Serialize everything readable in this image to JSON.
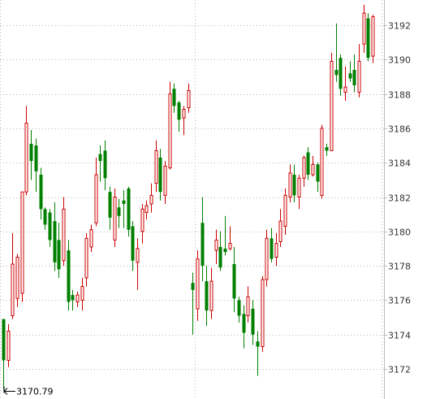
{
  "chart_data": {
    "type": "candlestick",
    "y_axis": {
      "position": "right",
      "min": 3170.5,
      "max": 3193.5,
      "ticks": [
        3172,
        3174,
        3176,
        3178,
        3180,
        3182,
        3184,
        3186,
        3188,
        3190,
        3192
      ]
    },
    "grid": {
      "horizontal": true,
      "vertical": true,
      "style": "dotted"
    },
    "up_color": "#cc0000",
    "down_color": "#008000",
    "low_marker": {
      "label": "3170.79",
      "value": 3170.79
    },
    "candles": [
      [
        3174.9,
        3172.5,
        3174.9,
        3170.8
      ],
      [
        3172.5,
        3174.2,
        3174.6,
        3172.1
      ],
      [
        3175.1,
        3178.1,
        3179.9,
        3174.9
      ],
      [
        3176.1,
        3178.5,
        3178.7,
        3175.6
      ],
      [
        3176.4,
        3182.3,
        3182.3,
        3175.9
      ],
      [
        3182.3,
        3186.3,
        3187.3,
        3182.1
      ],
      [
        3185.1,
        3184.1,
        3185.9,
        3183.0
      ],
      [
        3185.0,
        3183.5,
        3185.4,
        3182.3
      ],
      [
        3183.3,
        3181.3,
        3183.7,
        3180.7
      ],
      [
        3181.3,
        3180.4,
        3181.4,
        3180.1
      ],
      [
        3181.1,
        3179.5,
        3181.3,
        3179.1
      ],
      [
        3180.6,
        3178.2,
        3181.7,
        3177.7
      ],
      [
        3179.5,
        3177.8,
        3180.5,
        3177.3
      ],
      [
        3178.3,
        3181.3,
        3182.0,
        3178.0
      ],
      [
        3178.9,
        3175.9,
        3179.5,
        3175.4
      ],
      [
        3176.3,
        3176.0,
        3176.6,
        3175.4
      ],
      [
        3175.9,
        3176.3,
        3176.5,
        3175.6
      ],
      [
        3176.0,
        3176.8,
        3177.3,
        3175.4
      ],
      [
        3177.3,
        3179.6,
        3179.9,
        3176.8
      ],
      [
        3179.1,
        3180.1,
        3180.4,
        3178.8
      ],
      [
        3180.5,
        3183.3,
        3184.3,
        3180.3
      ],
      [
        3184.5,
        3184.1,
        3185.0,
        3182.9
      ],
      [
        3184.7,
        3183.1,
        3185.3,
        3182.4
      ],
      [
        3182.3,
        3180.8,
        3182.6,
        3180.1
      ],
      [
        3179.5,
        3182.0,
        3182.5,
        3179.1
      ],
      [
        3181.4,
        3180.9,
        3181.9,
        3180.2
      ],
      [
        3181.8,
        3181.6,
        3182.4,
        3180.2
      ],
      [
        3182.5,
        3180.1,
        3182.6,
        3179.7
      ],
      [
        3180.3,
        3178.3,
        3180.6,
        3177.7
      ],
      [
        3178.2,
        3179.0,
        3179.6,
        3176.6
      ],
      [
        3180.0,
        3181.3,
        3181.6,
        3179.3
      ],
      [
        3181.1,
        3181.5,
        3181.8,
        3180.7
      ],
      [
        3181.6,
        3182.1,
        3182.8,
        3181.1
      ],
      [
        3182.8,
        3184.7,
        3185.3,
        3182.3
      ],
      [
        3184.3,
        3182.3,
        3184.8,
        3181.8
      ],
      [
        3182.1,
        3183.8,
        3184.1,
        3181.6
      ],
      [
        3183.7,
        3188.0,
        3188.7,
        3183.6
      ],
      [
        3188.3,
        3187.3,
        3188.6,
        3186.9
      ],
      [
        3187.5,
        3186.5,
        3187.6,
        3185.8
      ],
      [
        3186.6,
        3187.1,
        3187.3,
        3185.6
      ],
      [
        3187.2,
        3188.2,
        3188.6,
        3186.9
      ],
      [
        3177.0,
        3176.6,
        3177.6,
        3174.0
      ],
      [
        3175.5,
        3178.4,
        3178.9,
        3174.8
      ],
      [
        3180.5,
        3178.0,
        3182.0,
        3177.1
      ],
      [
        3177.1,
        3175.4,
        3178.0,
        3174.5
      ],
      [
        3175.4,
        3177.1,
        3177.9,
        3174.9
      ],
      [
        3178.9,
        3179.5,
        3180.1,
        3178.1
      ],
      [
        3179.1,
        3177.9,
        3180.0,
        3177.7
      ],
      [
        3179.0,
        3178.8,
        3180.9,
        3178.6
      ],
      [
        3179.0,
        3179.3,
        3180.3,
        3178.9
      ],
      [
        3178.1,
        3176.1,
        3179.1,
        3175.3
      ],
      [
        3176.0,
        3175.1,
        3176.2,
        3174.7
      ],
      [
        3175.2,
        3174.1,
        3175.7,
        3173.2
      ],
      [
        3175.1,
        3176.2,
        3176.8,
        3174.7
      ],
      [
        3175.5,
        3174.0,
        3176.0,
        3173.4
      ],
      [
        3173.6,
        3173.3,
        3174.2,
        3171.6
      ],
      [
        3173.3,
        3177.2,
        3177.4,
        3173.0
      ],
      [
        3177.2,
        3179.6,
        3180.1,
        3176.8
      ],
      [
        3179.6,
        3178.4,
        3180.2,
        3178.2
      ],
      [
        3178.5,
        3179.3,
        3179.9,
        3178.0
      ],
      [
        3179.4,
        3180.6,
        3181.3,
        3179.1
      ],
      [
        3180.3,
        3182.1,
        3182.5,
        3179.8
      ],
      [
        3182.0,
        3183.4,
        3183.9,
        3181.7
      ],
      [
        3183.3,
        3182.1,
        3183.9,
        3181.7
      ],
      [
        3182.0,
        3183.1,
        3183.3,
        3181.3
      ],
      [
        3183.1,
        3184.3,
        3184.4,
        3182.6
      ],
      [
        3184.6,
        3183.3,
        3184.9,
        3183.0
      ],
      [
        3183.3,
        3183.9,
        3184.4,
        3183.2
      ],
      [
        3183.9,
        3182.9,
        3184.0,
        3182.3
      ],
      [
        3182.1,
        3186.0,
        3186.2,
        3181.9
      ],
      [
        3184.9,
        3184.7,
        3185.1,
        3184.4
      ],
      [
        3184.7,
        3189.9,
        3190.4,
        3184.7
      ],
      [
        3189.4,
        3189.1,
        3192.1,
        3188.7
      ],
      [
        3190.1,
        3188.3,
        3190.3,
        3187.9
      ],
      [
        3188.1,
        3188.4,
        3189.6,
        3187.6
      ],
      [
        3189.2,
        3188.9,
        3189.9,
        3188.7
      ],
      [
        3189.4,
        3188.5,
        3190.3,
        3188.1
      ],
      [
        3188.1,
        3189.9,
        3190.9,
        3187.8
      ],
      [
        3190.9,
        3192.7,
        3193.2,
        3190.4
      ],
      [
        3192.4,
        3190.1,
        3192.7,
        3189.9
      ],
      [
        3190.2,
        3192.5,
        3192.6,
        3189.8
      ]
    ]
  }
}
